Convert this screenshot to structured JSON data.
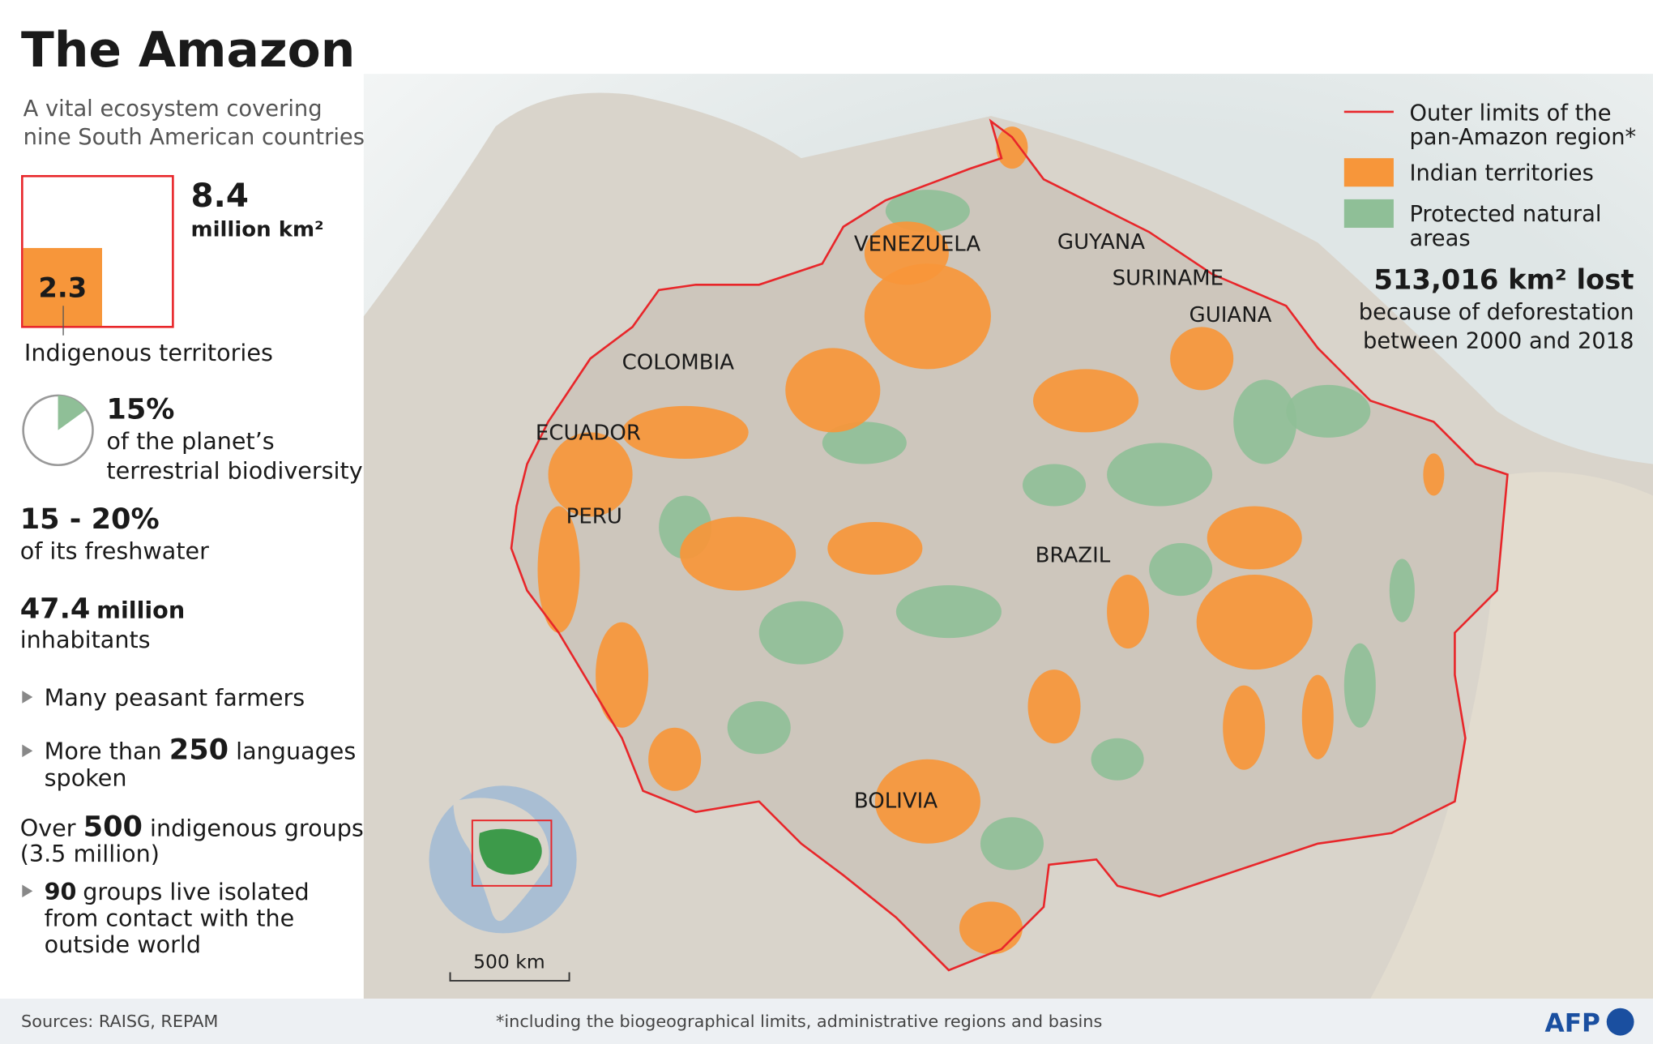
{
  "header": {
    "title": "The Amazon",
    "subtitle": [
      "A vital ecosystem covering",
      "nine South American countries"
    ]
  },
  "area": {
    "total": 8.4,
    "total_unit": "million km²",
    "indigenous": 2.3,
    "indigenous_label": "Indigenous territories"
  },
  "biodiversity": {
    "value": 15,
    "label": "15%",
    "text": [
      "of the planet’s",
      "terrestrial biodiversity"
    ]
  },
  "freshwater": {
    "value": "15 - 20%",
    "text": "of its freshwater"
  },
  "inhabitants": {
    "number": 47.4,
    "unit": "million",
    "text": "inhabitants"
  },
  "peasants": "Many peasant farmers",
  "languages": {
    "before": "More than",
    "number": 250,
    "after": "languages",
    "line2": "spoken"
  },
  "groups": {
    "before": "Over",
    "number": 500,
    "after": "indigenous groups",
    "line2": "(3.5 million)"
  },
  "isolated": {
    "number": 90,
    "after": "groups live isolated",
    "lines": [
      "from contact with the",
      "outside world"
    ]
  },
  "legend": [
    {
      "label": [
        "Outer limits of the",
        "pan-Amazon region*"
      ],
      "color": "#e8262a",
      "kind": "line"
    },
    {
      "label": [
        "Indian territories"
      ],
      "color": "#f7963a",
      "kind": "area"
    },
    {
      "label": [
        "Protected natural",
        "areas"
      ],
      "color": "#8fbf97",
      "kind": "area"
    }
  ],
  "deforestation": {
    "value": "513,016 km² lost",
    "text": [
      "because of deforestation",
      "between 2000 and 2018"
    ]
  },
  "countries": [
    "VENEZUELA",
    "GUYANA",
    "SURINAME",
    "GUIANA",
    "COLOMBIA",
    "ECUADOR",
    "PERU",
    "BRAZIL",
    "BOLIVIA"
  ],
  "scale": "500 km",
  "footer": {
    "sources": "Sources: RAISG, REPAM",
    "note": "*including the biogeographical limits, administrative regions and basins",
    "logo": "AFP"
  }
}
